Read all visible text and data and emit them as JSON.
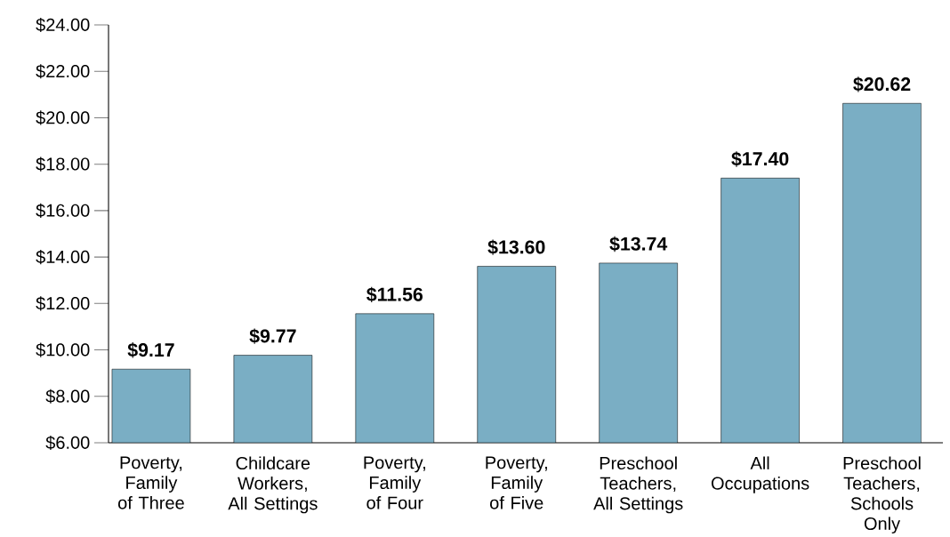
{
  "chart_data": {
    "type": "bar",
    "categories": [
      "Poverty, Family of Three",
      "Childcare Workers, All Settings",
      "Poverty, Family of Four",
      "Poverty, Family of Five",
      "Preschool Teachers, All Settings",
      "All Occupations",
      "Preschool Teachers, Schools Only"
    ],
    "values": [
      9.17,
      9.77,
      11.56,
      13.6,
      13.74,
      17.4,
      20.62
    ],
    "value_labels": [
      "$9.17",
      "$9.77",
      "$11.56",
      "$13.60",
      "$13.74",
      "$17.40",
      "$20.62"
    ],
    "color": "#7aaec4",
    "ylim": [
      6,
      24
    ],
    "yticks": [
      {
        "value": 6,
        "label": "$6.00"
      },
      {
        "value": 8,
        "label": "$8.00"
      },
      {
        "value": 10,
        "label": "$10.00"
      },
      {
        "value": 12,
        "label": "$12.00"
      },
      {
        "value": 14,
        "label": "$14.00"
      },
      {
        "value": 16,
        "label": "$16.00"
      },
      {
        "value": 18,
        "label": "$18.00"
      },
      {
        "value": 20,
        "label": "$20.00"
      },
      {
        "value": 22,
        "label": "$22.00"
      },
      {
        "value": 24,
        "label": "$24.00"
      }
    ],
    "grid": false
  }
}
